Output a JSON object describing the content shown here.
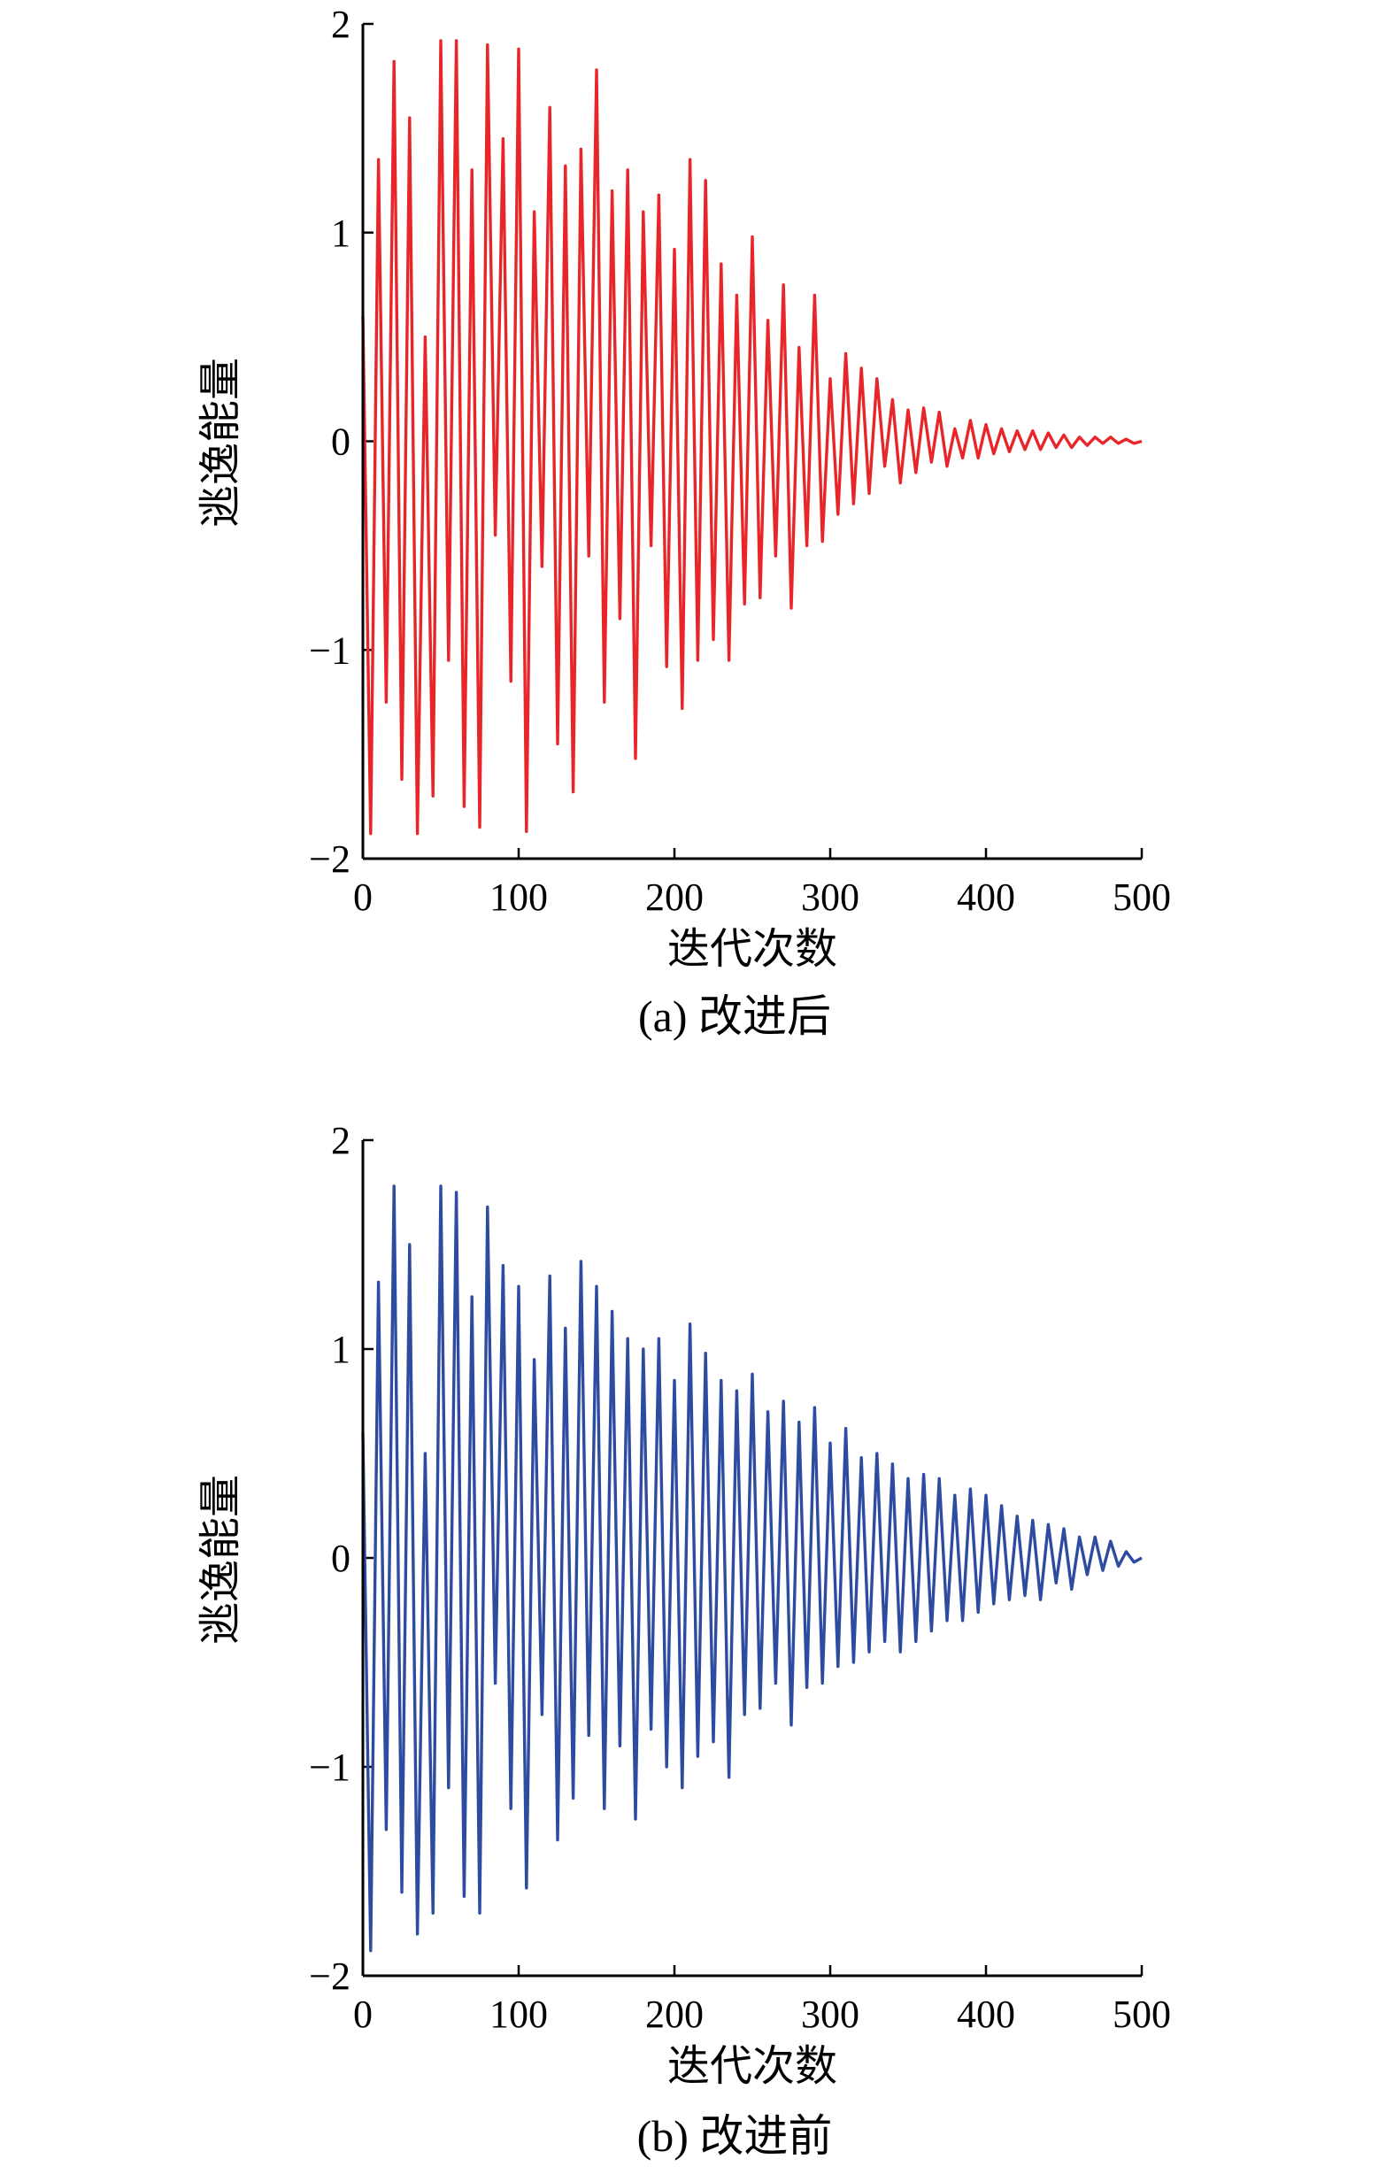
{
  "figure_type": "two stacked line charts",
  "chart_data": [
    {
      "type": "line",
      "title": "",
      "caption": "(a) 改进后",
      "xlabel": "迭代次数",
      "ylabel": "逃逸能量",
      "xlim": [
        0,
        500
      ],
      "ylim": [
        -2,
        2
      ],
      "xticks": [
        0,
        100,
        200,
        300,
        400,
        500
      ],
      "yticks": [
        -2,
        -1,
        0,
        1,
        2
      ],
      "ytick_labels": [
        "−2",
        "−1",
        "0",
        "1",
        "2"
      ],
      "grid": false,
      "legend": "none",
      "series": [
        {
          "color": "#e8262a",
          "envelope_note": "oscillating escape energy, amplitude shrinking with iterations",
          "x": [
            0,
            5,
            10,
            15,
            20,
            25,
            30,
            35,
            40,
            45,
            50,
            55,
            60,
            65,
            70,
            75,
            80,
            85,
            90,
            95,
            100,
            105,
            110,
            115,
            120,
            125,
            130,
            135,
            140,
            145,
            150,
            155,
            160,
            165,
            170,
            175,
            180,
            185,
            190,
            195,
            200,
            205,
            210,
            215,
            220,
            225,
            230,
            235,
            240,
            245,
            250,
            255,
            260,
            265,
            270,
            275,
            280,
            285,
            290,
            295,
            300,
            305,
            310,
            315,
            320,
            325,
            330,
            335,
            340,
            345,
            350,
            355,
            360,
            365,
            370,
            375,
            380,
            385,
            390,
            395,
            400,
            405,
            410,
            415,
            420,
            425,
            430,
            435,
            440,
            445,
            450,
            455,
            460,
            465,
            470,
            475,
            480,
            485,
            490,
            495,
            500
          ],
          "y": [
            0.6,
            -1.88,
            1.35,
            -1.25,
            1.82,
            -1.62,
            1.55,
            -1.88,
            0.5,
            -1.7,
            1.92,
            -1.05,
            1.92,
            -1.75,
            1.3,
            -1.85,
            1.9,
            -0.45,
            1.45,
            -1.15,
            1.88,
            -1.87,
            1.1,
            -0.6,
            1.6,
            -1.45,
            1.32,
            -1.68,
            1.4,
            -0.55,
            1.78,
            -1.25,
            1.2,
            -0.85,
            1.3,
            -1.52,
            1.1,
            -0.5,
            1.18,
            -1.08,
            0.92,
            -1.28,
            1.35,
            -1.05,
            1.25,
            -0.95,
            0.85,
            -1.05,
            0.7,
            -0.78,
            0.98,
            -0.75,
            0.58,
            -0.55,
            0.75,
            -0.8,
            0.45,
            -0.5,
            0.7,
            -0.48,
            0.3,
            -0.35,
            0.42,
            -0.3,
            0.35,
            -0.25,
            0.3,
            -0.12,
            0.2,
            -0.2,
            0.15,
            -0.15,
            0.16,
            -0.1,
            0.14,
            -0.12,
            0.06,
            -0.08,
            0.1,
            -0.08,
            0.08,
            -0.06,
            0.06,
            -0.05,
            0.05,
            -0.04,
            0.05,
            -0.04,
            0.04,
            -0.03,
            0.03,
            -0.03,
            0.02,
            -0.02,
            0.02,
            -0.01,
            0.02,
            -0.01,
            0.01,
            -0.01,
            0.0
          ]
        }
      ]
    },
    {
      "type": "line",
      "title": "",
      "caption": "(b) 改进前",
      "xlabel": "迭代次数",
      "ylabel": "逃逸能量",
      "xlim": [
        0,
        500
      ],
      "ylim": [
        -2,
        2
      ],
      "xticks": [
        0,
        100,
        200,
        300,
        400,
        500
      ],
      "yticks": [
        -2,
        -1,
        0,
        1,
        2
      ],
      "ytick_labels": [
        "−2",
        "−1",
        "0",
        "1",
        "2"
      ],
      "grid": false,
      "legend": "none",
      "series": [
        {
          "color": "#2d4ba0",
          "x": [
            0,
            5,
            10,
            15,
            20,
            25,
            30,
            35,
            40,
            45,
            50,
            55,
            60,
            65,
            70,
            75,
            80,
            85,
            90,
            95,
            100,
            105,
            110,
            115,
            120,
            125,
            130,
            135,
            140,
            145,
            150,
            155,
            160,
            165,
            170,
            175,
            180,
            185,
            190,
            195,
            200,
            205,
            210,
            215,
            220,
            225,
            230,
            235,
            240,
            245,
            250,
            255,
            260,
            265,
            270,
            275,
            280,
            285,
            290,
            295,
            300,
            305,
            310,
            315,
            320,
            325,
            330,
            335,
            340,
            345,
            350,
            355,
            360,
            365,
            370,
            375,
            380,
            385,
            390,
            395,
            400,
            405,
            410,
            415,
            420,
            425,
            430,
            435,
            440,
            445,
            450,
            455,
            460,
            465,
            470,
            475,
            480,
            485,
            490,
            495,
            500
          ],
          "y": [
            0.6,
            -1.88,
            1.32,
            -1.3,
            1.78,
            -1.6,
            1.5,
            -1.8,
            0.5,
            -1.7,
            1.78,
            -1.1,
            1.75,
            -1.62,
            1.25,
            -1.7,
            1.68,
            -0.6,
            1.4,
            -1.2,
            1.3,
            -1.58,
            0.95,
            -0.75,
            1.35,
            -1.35,
            1.1,
            -1.15,
            1.42,
            -0.85,
            1.3,
            -1.2,
            1.18,
            -0.9,
            1.05,
            -1.25,
            1.0,
            -0.82,
            1.05,
            -1.0,
            0.85,
            -1.1,
            1.12,
            -0.95,
            0.98,
            -0.88,
            0.85,
            -1.05,
            0.8,
            -0.75,
            0.88,
            -0.72,
            0.7,
            -0.6,
            0.75,
            -0.8,
            0.65,
            -0.62,
            0.72,
            -0.6,
            0.55,
            -0.52,
            0.62,
            -0.5,
            0.48,
            -0.45,
            0.5,
            -0.4,
            0.45,
            -0.45,
            0.38,
            -0.4,
            0.4,
            -0.35,
            0.38,
            -0.3,
            0.3,
            -0.3,
            0.33,
            -0.26,
            0.3,
            -0.22,
            0.25,
            -0.2,
            0.2,
            -0.18,
            0.18,
            -0.2,
            0.16,
            -0.12,
            0.14,
            -0.15,
            0.1,
            -0.08,
            0.1,
            -0.06,
            0.08,
            -0.04,
            0.03,
            -0.02,
            0.0
          ]
        }
      ]
    }
  ]
}
